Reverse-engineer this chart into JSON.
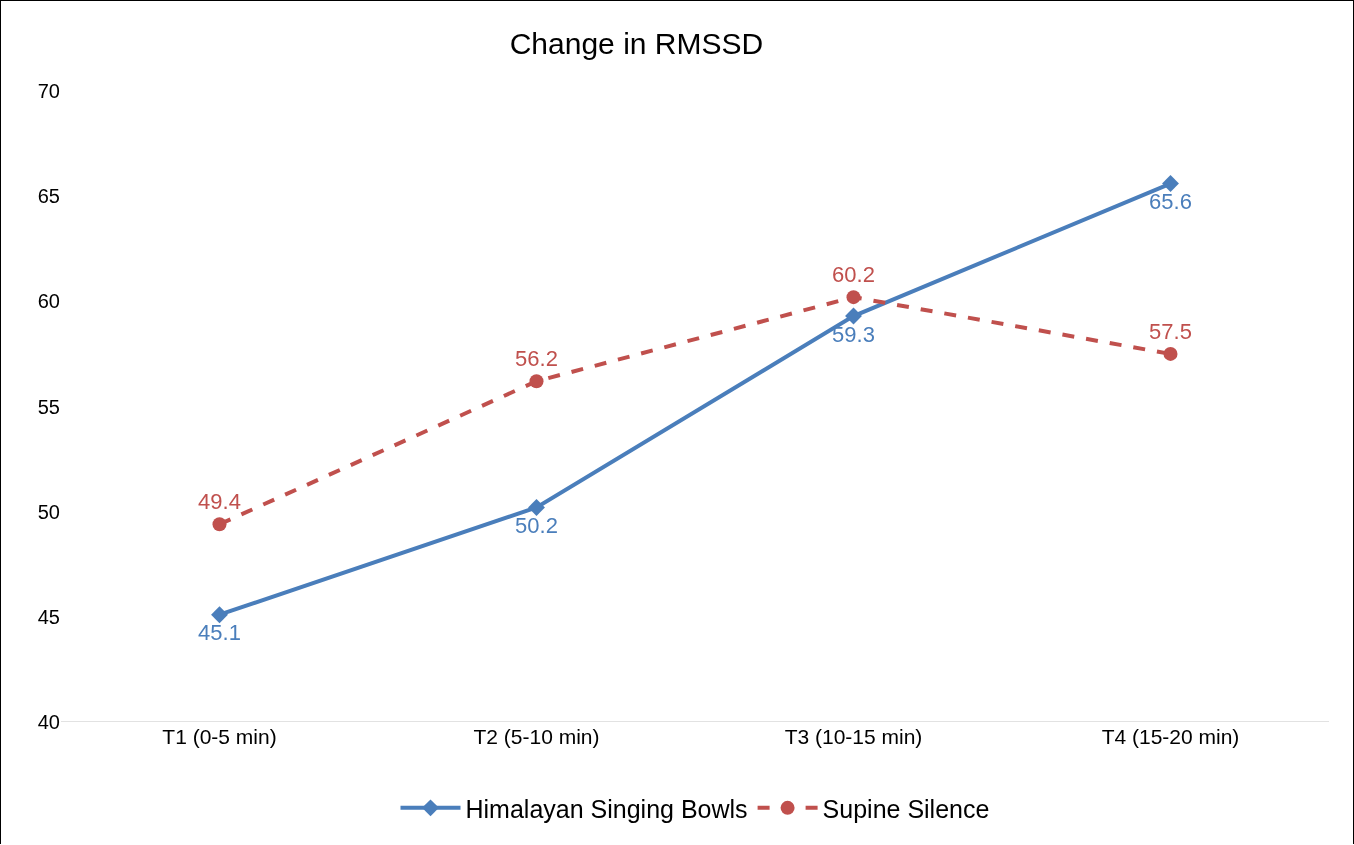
{
  "chart_data": {
    "type": "line",
    "title": "Change in RMSSD",
    "categories": [
      "T1 (0-5 min)",
      "T2 (5-10 min)",
      "T3 (10-15 min)",
      "T4 (15-20 min)"
    ],
    "series": [
      {
        "name": "Himalayan Singing Bowls",
        "color": "#4a7ebb",
        "values": [
          45.1,
          50.2,
          59.3,
          65.6
        ],
        "marker": "diamond",
        "line_style": "solid"
      },
      {
        "name": "Supine Silence",
        "color": "#c0504d",
        "values": [
          49.4,
          56.2,
          60.2,
          57.5
        ],
        "marker": "circle",
        "line_style": "dashed"
      }
    ],
    "ylim": [
      40,
      70
    ],
    "yticks": [
      40,
      45,
      50,
      55,
      60,
      65,
      70
    ],
    "grid": false,
    "legend": "bottom",
    "data_labels": true
  }
}
